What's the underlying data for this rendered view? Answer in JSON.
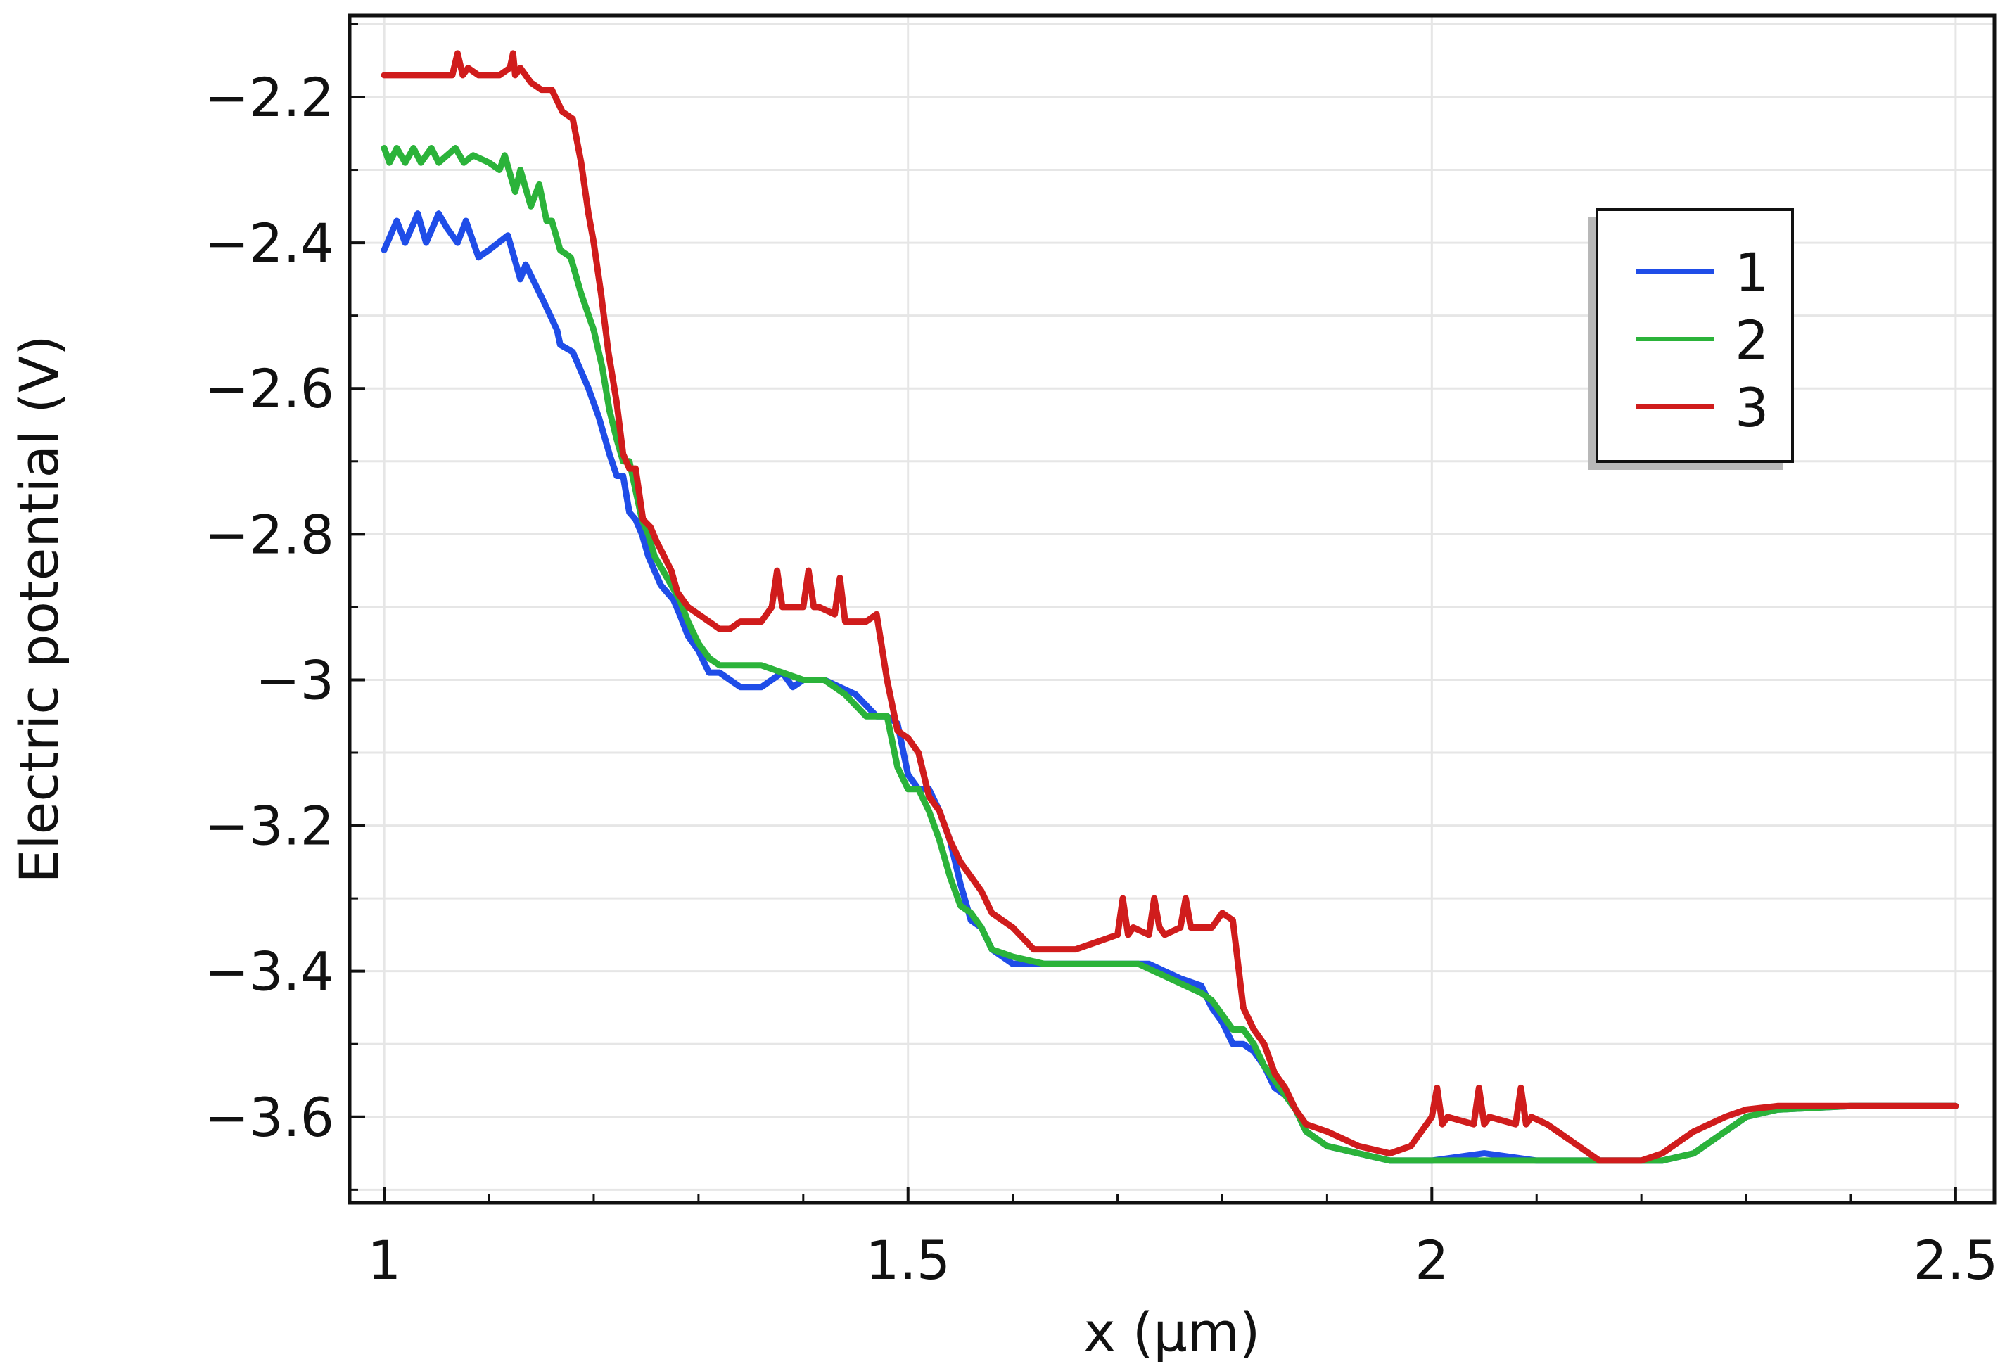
{
  "chart_data": {
    "type": "line",
    "xlabel": "x (µm)",
    "ylabel": "Electric potential (V)",
    "xlim": [
      0.967,
      2.537
    ],
    "ylim": [
      -3.718,
      -2.088
    ],
    "x_ticks": [
      1,
      1.5,
      2,
      2.5
    ],
    "x_tick_labels": [
      "1",
      "1.5",
      "2",
      "2.5"
    ],
    "y_ticks": [
      -2.2,
      -2.4,
      -2.6,
      -2.8,
      -3,
      -3.2,
      -3.4,
      -3.6
    ],
    "y_tick_labels": [
      "−2.2",
      "−2.4",
      "−2.6",
      "−2.8",
      "−3",
      "−3.2",
      "−3.4",
      "−3.6"
    ],
    "grid": true,
    "legend_position": "top-right",
    "series": [
      {
        "name": "1",
        "color": "#1f4de8",
        "x": [
          1.0,
          1.012,
          1.02,
          1.032,
          1.04,
          1.052,
          1.06,
          1.07,
          1.078,
          1.09,
          1.1,
          1.118,
          1.13,
          1.135,
          1.152,
          1.165,
          1.168,
          1.18,
          1.195,
          1.205,
          1.215,
          1.222,
          1.228,
          1.234,
          1.24,
          1.246,
          1.252,
          1.258,
          1.264,
          1.27,
          1.276,
          1.282,
          1.29,
          1.3,
          1.31,
          1.32,
          1.33,
          1.34,
          1.36,
          1.38,
          1.39,
          1.4,
          1.42,
          1.45,
          1.47,
          1.48,
          1.49,
          1.5,
          1.51,
          1.52,
          1.53,
          1.54,
          1.55,
          1.56,
          1.57,
          1.58,
          1.6,
          1.65,
          1.7,
          1.73,
          1.76,
          1.78,
          1.79,
          1.8,
          1.81,
          1.82,
          1.83,
          1.84,
          1.85,
          1.86,
          1.87,
          1.88,
          1.9,
          1.93,
          1.96,
          2.0,
          2.05,
          2.1,
          2.15,
          2.2,
          2.22,
          2.25,
          2.28,
          2.3,
          2.33,
          2.4,
          2.5
        ],
        "y": [
          -2.41,
          -2.37,
          -2.4,
          -2.36,
          -2.4,
          -2.36,
          -2.38,
          -2.4,
          -2.37,
          -2.42,
          -2.41,
          -2.39,
          -2.45,
          -2.43,
          -2.48,
          -2.52,
          -2.54,
          -2.55,
          -2.6,
          -2.64,
          -2.69,
          -2.72,
          -2.72,
          -2.77,
          -2.78,
          -2.8,
          -2.83,
          -2.85,
          -2.87,
          -2.88,
          -2.89,
          -2.91,
          -2.94,
          -2.96,
          -2.99,
          -2.99,
          -3.0,
          -3.01,
          -3.01,
          -2.99,
          -3.01,
          -3.0,
          -3.0,
          -3.02,
          -3.05,
          -3.05,
          -3.06,
          -3.13,
          -3.15,
          -3.15,
          -3.18,
          -3.22,
          -3.28,
          -3.33,
          -3.34,
          -3.37,
          -3.39,
          -3.39,
          -3.39,
          -3.39,
          -3.41,
          -3.42,
          -3.45,
          -3.47,
          -3.5,
          -3.5,
          -3.51,
          -3.53,
          -3.56,
          -3.57,
          -3.59,
          -3.62,
          -3.64,
          -3.65,
          -3.66,
          -3.66,
          -3.65,
          -3.66,
          -3.66,
          -3.66,
          -3.66,
          -3.65,
          -3.62,
          -3.6,
          -3.59,
          -3.585,
          -3.585
        ]
      },
      {
        "name": "2",
        "color": "#2bb33a",
        "x": [
          1.0,
          1.005,
          1.012,
          1.02,
          1.028,
          1.035,
          1.045,
          1.052,
          1.06,
          1.068,
          1.076,
          1.085,
          1.1,
          1.11,
          1.115,
          1.125,
          1.13,
          1.14,
          1.148,
          1.155,
          1.16,
          1.168,
          1.178,
          1.188,
          1.2,
          1.208,
          1.215,
          1.222,
          1.228,
          1.234,
          1.24,
          1.246,
          1.252,
          1.258,
          1.266,
          1.274,
          1.282,
          1.29,
          1.3,
          1.31,
          1.32,
          1.34,
          1.36,
          1.38,
          1.4,
          1.42,
          1.44,
          1.46,
          1.47,
          1.48,
          1.49,
          1.5,
          1.51,
          1.52,
          1.53,
          1.54,
          1.55,
          1.56,
          1.57,
          1.58,
          1.6,
          1.63,
          1.66,
          1.69,
          1.72,
          1.75,
          1.78,
          1.79,
          1.8,
          1.81,
          1.82,
          1.83,
          1.84,
          1.85,
          1.86,
          1.87,
          1.88,
          1.9,
          1.93,
          1.96,
          2.0,
          2.05,
          2.1,
          2.15,
          2.2,
          2.22,
          2.25,
          2.28,
          2.3,
          2.33,
          2.4,
          2.5
        ],
        "y": [
          -2.27,
          -2.29,
          -2.27,
          -2.29,
          -2.27,
          -2.29,
          -2.27,
          -2.29,
          -2.28,
          -2.27,
          -2.29,
          -2.28,
          -2.29,
          -2.3,
          -2.28,
          -2.33,
          -2.3,
          -2.35,
          -2.32,
          -2.37,
          -2.37,
          -2.41,
          -2.42,
          -2.47,
          -2.52,
          -2.57,
          -2.63,
          -2.67,
          -2.7,
          -2.7,
          -2.74,
          -2.78,
          -2.8,
          -2.83,
          -2.85,
          -2.87,
          -2.89,
          -2.92,
          -2.95,
          -2.97,
          -2.98,
          -2.98,
          -2.98,
          -2.99,
          -3.0,
          -3.0,
          -3.02,
          -3.05,
          -3.05,
          -3.05,
          -3.12,
          -3.15,
          -3.15,
          -3.18,
          -3.22,
          -3.27,
          -3.31,
          -3.32,
          -3.34,
          -3.37,
          -3.38,
          -3.39,
          -3.39,
          -3.39,
          -3.39,
          -3.41,
          -3.43,
          -3.44,
          -3.46,
          -3.48,
          -3.48,
          -3.5,
          -3.53,
          -3.55,
          -3.57,
          -3.59,
          -3.62,
          -3.64,
          -3.65,
          -3.66,
          -3.66,
          -3.66,
          -3.66,
          -3.66,
          -3.66,
          -3.66,
          -3.65,
          -3.62,
          -3.6,
          -3.59,
          -3.585,
          -3.585
        ]
      },
      {
        "name": "3",
        "color": "#d01c1c",
        "x": [
          1.0,
          1.02,
          1.05,
          1.065,
          1.07,
          1.075,
          1.08,
          1.09,
          1.11,
          1.12,
          1.123,
          1.125,
          1.13,
          1.14,
          1.15,
          1.16,
          1.17,
          1.18,
          1.188,
          1.195,
          1.2,
          1.207,
          1.214,
          1.222,
          1.228,
          1.234,
          1.24,
          1.247,
          1.254,
          1.26,
          1.267,
          1.274,
          1.28,
          1.29,
          1.3,
          1.31,
          1.32,
          1.33,
          1.34,
          1.36,
          1.37,
          1.375,
          1.38,
          1.385,
          1.4,
          1.405,
          1.41,
          1.415,
          1.43,
          1.435,
          1.44,
          1.445,
          1.46,
          1.47,
          1.48,
          1.49,
          1.5,
          1.51,
          1.52,
          1.53,
          1.54,
          1.55,
          1.56,
          1.57,
          1.58,
          1.6,
          1.62,
          1.64,
          1.66,
          1.7,
          1.705,
          1.71,
          1.715,
          1.73,
          1.735,
          1.74,
          1.745,
          1.76,
          1.765,
          1.77,
          1.775,
          1.79,
          1.8,
          1.81,
          1.82,
          1.83,
          1.84,
          1.85,
          1.86,
          1.87,
          1.88,
          1.9,
          1.93,
          1.96,
          1.98,
          2.0,
          2.005,
          2.01,
          2.015,
          2.04,
          2.045,
          2.05,
          2.055,
          2.08,
          2.085,
          2.09,
          2.095,
          2.11,
          2.12,
          2.14,
          2.16,
          2.18,
          2.2,
          2.22,
          2.25,
          2.28,
          2.3,
          2.33,
          2.4,
          2.5
        ],
        "y": [
          -2.17,
          -2.17,
          -2.17,
          -2.17,
          -2.14,
          -2.17,
          -2.16,
          -2.17,
          -2.17,
          -2.16,
          -2.14,
          -2.17,
          -2.16,
          -2.18,
          -2.19,
          -2.19,
          -2.22,
          -2.23,
          -2.29,
          -2.36,
          -2.4,
          -2.47,
          -2.55,
          -2.62,
          -2.69,
          -2.71,
          -2.71,
          -2.78,
          -2.79,
          -2.81,
          -2.83,
          -2.85,
          -2.88,
          -2.9,
          -2.91,
          -2.92,
          -2.93,
          -2.93,
          -2.92,
          -2.92,
          -2.9,
          -2.85,
          -2.9,
          -2.9,
          -2.9,
          -2.85,
          -2.9,
          -2.9,
          -2.91,
          -2.86,
          -2.92,
          -2.92,
          -2.92,
          -2.91,
          -3.0,
          -3.07,
          -3.08,
          -3.1,
          -3.16,
          -3.18,
          -3.22,
          -3.25,
          -3.27,
          -3.29,
          -3.32,
          -3.34,
          -3.37,
          -3.37,
          -3.37,
          -3.35,
          -3.3,
          -3.35,
          -3.34,
          -3.35,
          -3.3,
          -3.34,
          -3.35,
          -3.34,
          -3.3,
          -3.34,
          -3.34,
          -3.34,
          -3.32,
          -3.33,
          -3.45,
          -3.48,
          -3.5,
          -3.54,
          -3.56,
          -3.59,
          -3.61,
          -3.62,
          -3.64,
          -3.65,
          -3.64,
          -3.6,
          -3.56,
          -3.61,
          -3.6,
          -3.61,
          -3.56,
          -3.61,
          -3.6,
          -3.61,
          -3.56,
          -3.61,
          -3.6,
          -3.61,
          -3.62,
          -3.64,
          -3.66,
          -3.66,
          -3.66,
          -3.65,
          -3.62,
          -3.6,
          -3.59,
          -3.585,
          -3.585,
          -3.585
        ]
      }
    ]
  }
}
